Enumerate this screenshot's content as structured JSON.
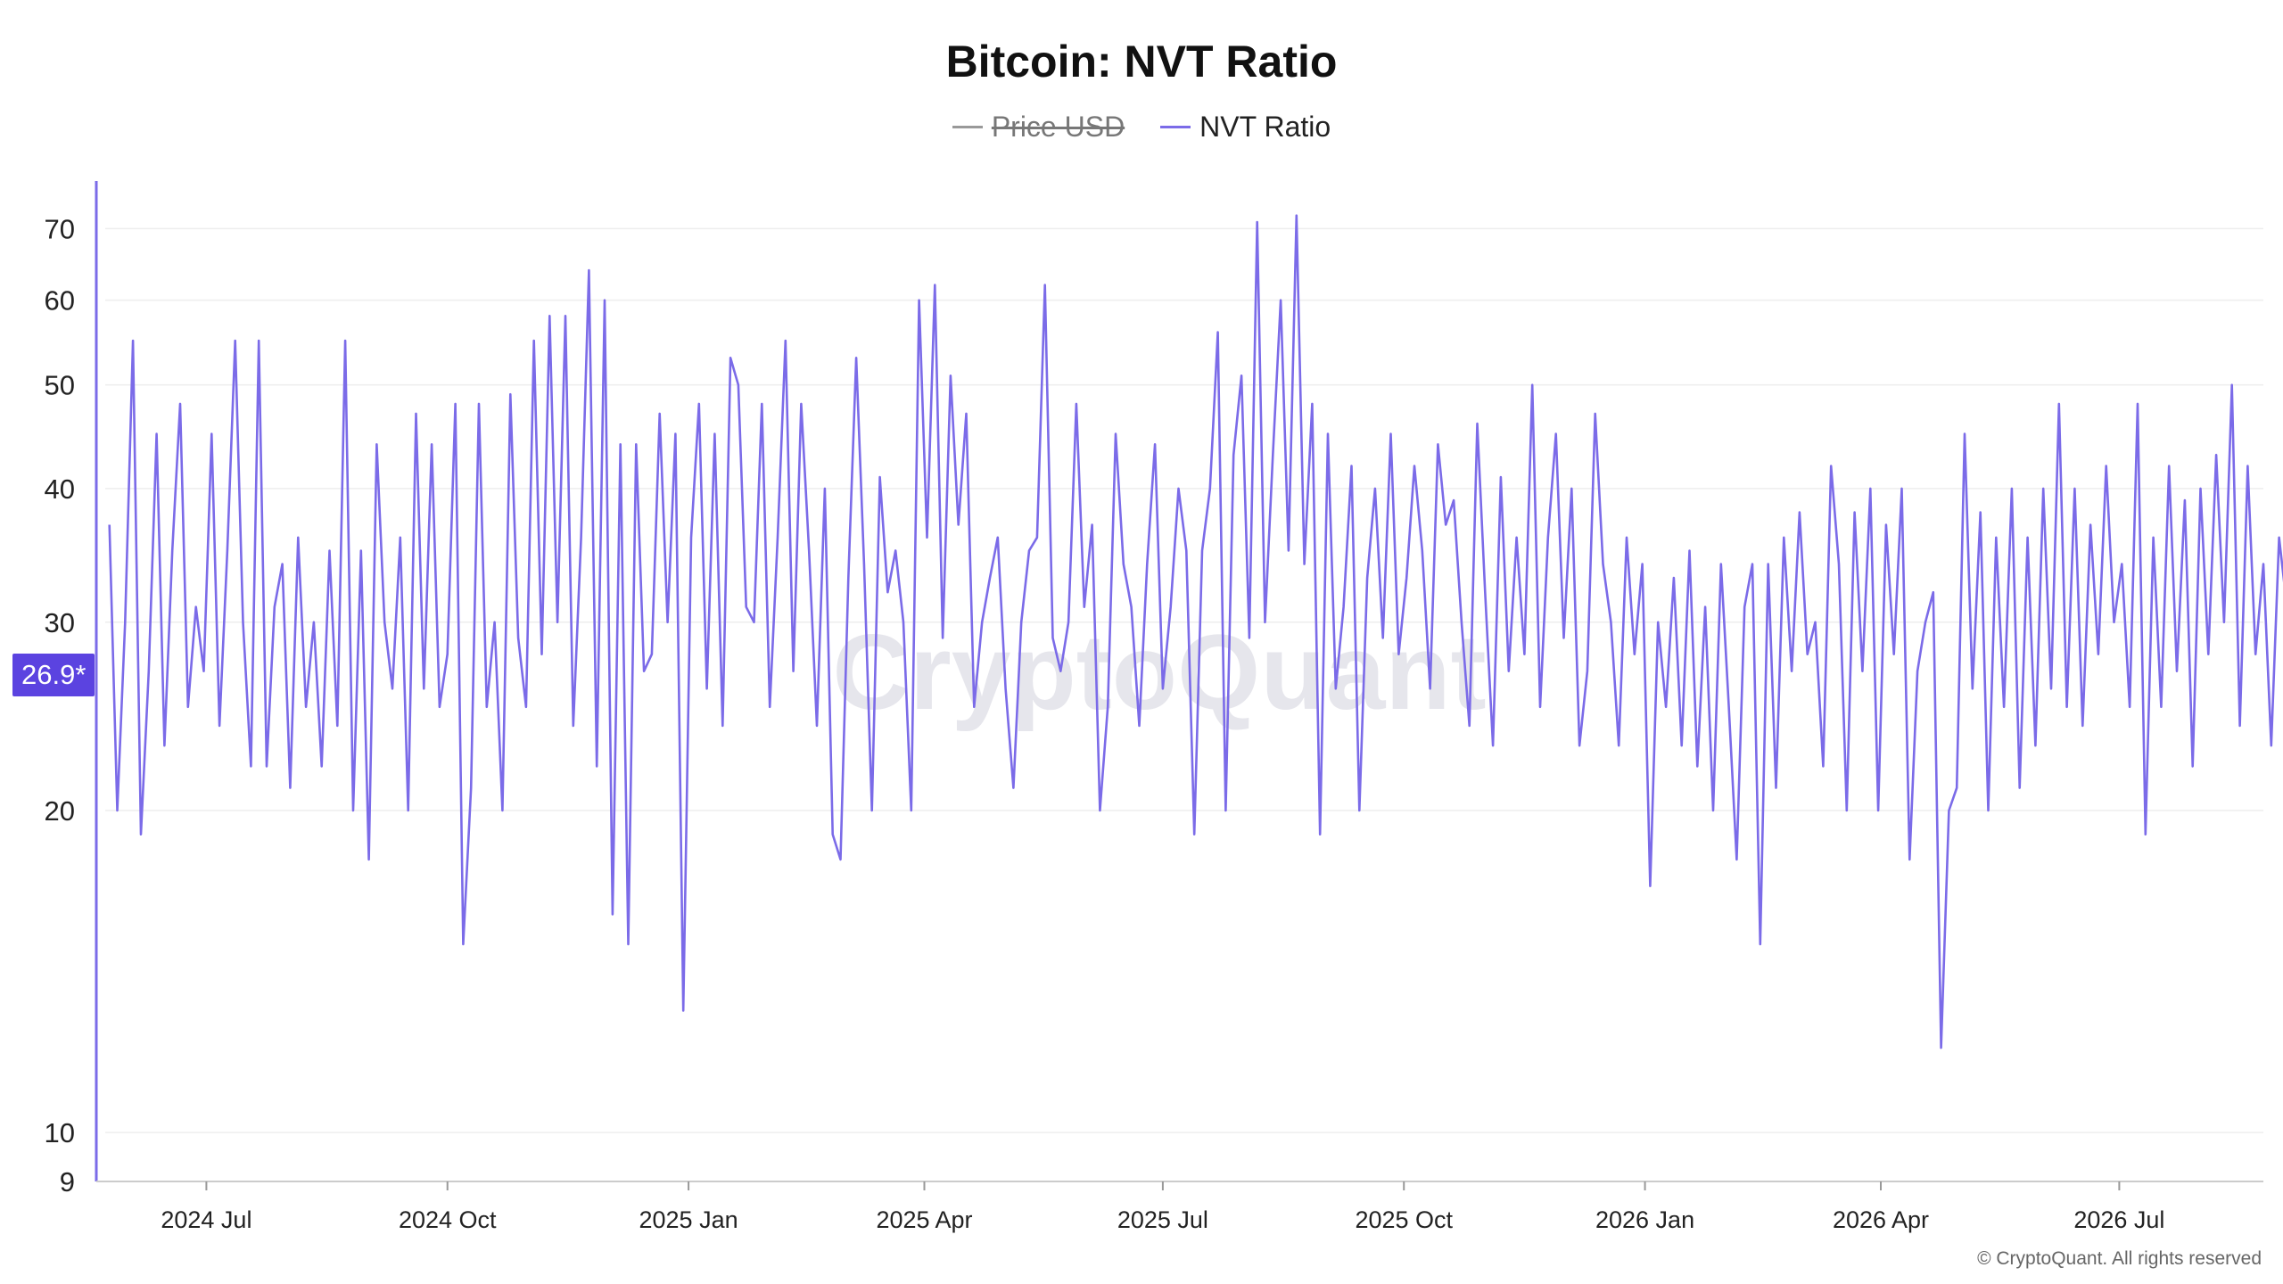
{
  "title": "Bitcoin: NVT Ratio",
  "legend": [
    {
      "label": "Price USD",
      "color": "#999999",
      "hidden": true
    },
    {
      "label": "NVT Ratio",
      "color": "#7b6be8",
      "hidden": false
    }
  ],
  "current_value_label": "26.9*",
  "copyright": "© CryptoQuant. All rights reserved",
  "watermark": "CryptoQuant",
  "colors": {
    "line": "#7b6be8",
    "axis": "#7b6be8",
    "grid": "#eeeeee",
    "badge": "#5b43e0"
  },
  "chart_data": {
    "type": "line",
    "title": "Bitcoin: NVT Ratio",
    "yscale": "log",
    "ylim": [
      9,
      78
    ],
    "yticks": [
      9,
      10,
      20,
      30,
      40,
      50,
      60,
      70
    ],
    "xlim": [
      "2024-05-20",
      "2026-08-25"
    ],
    "xticks": [
      {
        "date": "2024-07-01",
        "label": "2024 Jul"
      },
      {
        "date": "2024-10-01",
        "label": "2024 Oct"
      },
      {
        "date": "2025-01-01",
        "label": "2025 Jan"
      },
      {
        "date": "2025-04-01",
        "label": "2025 Apr"
      },
      {
        "date": "2025-07-01",
        "label": "2025 Jul"
      },
      {
        "date": "2025-10-01",
        "label": "2025 Oct"
      },
      {
        "date": "2026-01-01",
        "label": "2026 Jan"
      },
      {
        "date": "2026-04-01",
        "label": "2026 Apr"
      },
      {
        "date": "2026-07-01",
        "label": "2026 Jul"
      }
    ],
    "series": [
      {
        "name": "NVT Ratio",
        "start_date": "2024-05-25",
        "step_days": 3,
        "values": [
          37,
          20,
          30,
          55,
          19,
          27,
          45,
          23,
          35,
          48,
          25,
          31,
          27,
          45,
          24,
          35,
          55,
          30,
          22,
          55,
          22,
          31,
          34,
          21,
          36,
          25,
          30,
          22,
          35,
          24,
          55,
          20,
          35,
          18,
          44,
          30,
          26,
          36,
          20,
          47,
          26,
          44,
          25,
          28,
          48,
          15,
          21,
          48,
          25,
          30,
          20,
          49,
          29,
          25,
          55,
          28,
          58,
          30,
          58,
          24,
          36,
          64,
          22,
          60,
          16,
          44,
          15,
          44,
          27,
          28,
          47,
          30,
          45,
          13,
          36,
          48,
          26,
          45,
          24,
          53,
          50,
          31,
          30,
          48,
          25,
          36,
          55,
          27,
          48,
          35,
          24,
          40,
          19,
          18,
          33,
          53,
          34,
          20,
          41,
          32,
          35,
          30,
          20,
          60,
          36,
          62,
          29,
          51,
          37,
          47,
          25,
          30,
          33,
          36,
          26,
          21,
          30,
          35,
          36,
          62,
          29,
          27,
          30,
          48,
          31,
          37,
          20,
          25,
          45,
          34,
          31,
          24,
          34,
          44,
          26,
          31,
          40,
          35,
          19,
          35,
          40,
          56,
          20,
          43,
          51,
          29,
          71,
          30,
          43,
          60,
          35,
          72,
          34,
          48,
          19,
          45,
          26,
          31,
          42,
          20,
          33,
          40,
          29,
          45,
          28,
          33,
          42,
          35,
          26,
          44,
          37,
          39,
          30,
          24,
          46,
          32,
          23,
          41,
          27,
          36,
          28,
          50,
          25,
          36,
          45,
          29,
          40,
          23,
          27,
          47,
          34,
          30,
          23,
          36,
          28,
          34,
          17,
          30,
          25,
          33,
          23,
          35,
          22,
          31,
          20,
          34,
          25,
          18,
          31,
          34,
          15,
          34,
          21,
          36,
          27,
          38,
          28,
          30,
          22,
          42,
          34,
          20,
          38,
          27,
          40,
          20,
          37,
          28,
          40,
          18,
          27,
          30,
          32,
          12,
          20,
          21,
          45,
          26,
          38,
          20,
          36,
          25,
          40,
          21,
          36,
          23,
          40,
          26,
          48,
          25,
          40,
          24,
          37,
          28,
          42,
          30,
          34,
          25,
          48,
          19,
          36,
          25,
          42,
          27,
          39,
          22,
          40,
          28,
          43,
          30,
          50,
          24,
          42,
          28,
          34,
          23,
          36,
          31,
          44,
          22,
          37,
          23,
          40,
          34,
          21,
          45,
          28,
          35,
          24,
          43,
          26,
          30,
          36,
          22,
          30,
          25,
          35,
          24,
          42,
          28,
          34,
          19,
          37,
          28,
          38,
          33,
          40,
          22,
          34,
          25,
          30,
          21,
          28,
          20,
          30,
          26,
          24,
          28,
          32,
          21,
          24,
          39,
          30
        ]
      }
    ]
  }
}
